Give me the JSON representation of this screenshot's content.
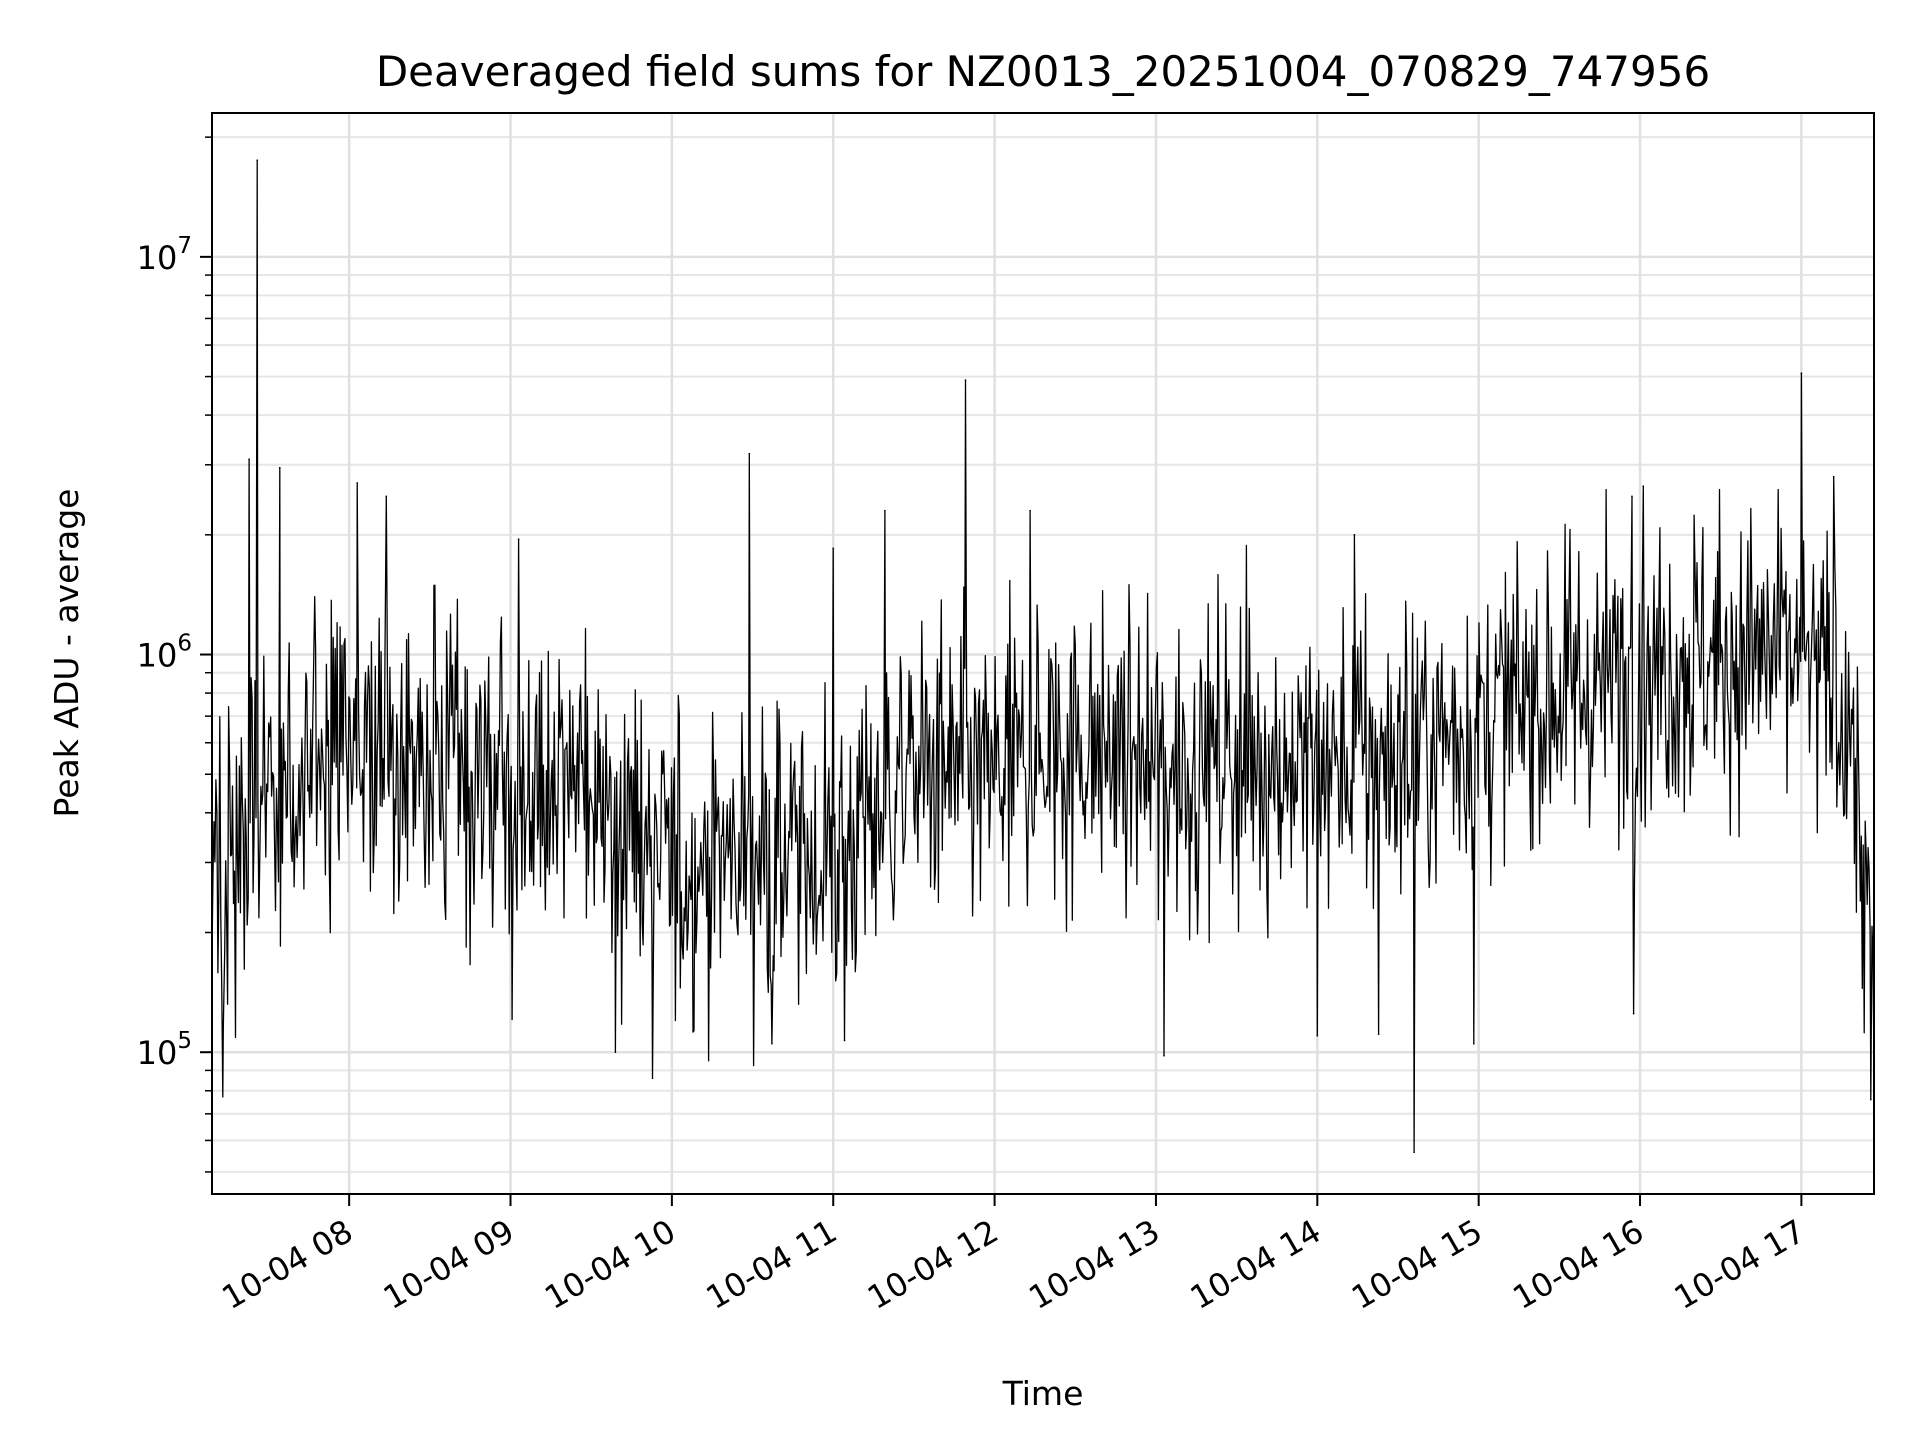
{
  "chart_data": {
    "type": "line",
    "title": "Deaveraged field sums for NZ0013_20251004_070829_747956",
    "xlabel": "Time",
    "ylabel": "Peak ADU - average",
    "yscale": "log",
    "ylim": [
      44000,
      23000000
    ],
    "xlim_hours": [
      7.15,
      17.45
    ],
    "grid": true,
    "line_color": "#000000",
    "x_ticks": [
      {
        "value": 8,
        "label": "10-04 08"
      },
      {
        "value": 9,
        "label": "10-04 09"
      },
      {
        "value": 10,
        "label": "10-04 10"
      },
      {
        "value": 11,
        "label": "10-04 11"
      },
      {
        "value": 12,
        "label": "10-04 12"
      },
      {
        "value": 13,
        "label": "10-04 13"
      },
      {
        "value": 14,
        "label": "10-04 14"
      },
      {
        "value": 15,
        "label": "10-04 15"
      },
      {
        "value": 16,
        "label": "10-04 16"
      },
      {
        "value": 17,
        "label": "10-04 17"
      }
    ],
    "y_ticks": [
      {
        "value": 100000,
        "base": "10",
        "exp": "5"
      },
      {
        "value": 1000000,
        "base": "10",
        "exp": "6"
      },
      {
        "value": 10000000,
        "base": "10",
        "exp": "7"
      }
    ],
    "series": [
      {
        "name": "Peak ADU - average",
        "approximate_trend": {
          "x": [
            7.15,
            7.5,
            8.0,
            8.5,
            9.0,
            9.5,
            10.0,
            10.5,
            11.0,
            11.5,
            12.0,
            12.5,
            13.0,
            13.5,
            14.0,
            14.5,
            15.0,
            15.5,
            16.0,
            16.5,
            17.0,
            17.3,
            17.45
          ],
          "y": [
            250000,
            420000,
            560000,
            520000,
            430000,
            480000,
            280000,
            330000,
            300000,
            520000,
            480000,
            600000,
            520000,
            560000,
            520000,
            560000,
            680000,
            800000,
            900000,
            1000000,
            980000,
            700000,
            130000
          ]
        },
        "spikes": [
          {
            "x": 7.38,
            "y": 3100000
          },
          {
            "x": 7.43,
            "y": 17500000
          },
          {
            "x": 7.57,
            "y": 2950000
          },
          {
            "x": 8.05,
            "y": 2700000
          },
          {
            "x": 8.23,
            "y": 2500000
          },
          {
            "x": 9.05,
            "y": 1950000
          },
          {
            "x": 10.48,
            "y": 3200000
          },
          {
            "x": 11.0,
            "y": 1850000
          },
          {
            "x": 11.32,
            "y": 2300000
          },
          {
            "x": 11.82,
            "y": 4900000
          },
          {
            "x": 12.22,
            "y": 2300000
          },
          {
            "x": 14.23,
            "y": 2000000
          },
          {
            "x": 15.95,
            "y": 2500000
          },
          {
            "x": 16.02,
            "y": 2650000
          },
          {
            "x": 17.0,
            "y": 5100000
          },
          {
            "x": 17.2,
            "y": 2800000
          }
        ],
        "dips": [
          {
            "x": 7.22,
            "y": 115000
          },
          {
            "x": 9.65,
            "y": 100000
          },
          {
            "x": 9.88,
            "y": 86000
          },
          {
            "x": 10.62,
            "y": 105000
          },
          {
            "x": 11.07,
            "y": 107000
          },
          {
            "x": 13.05,
            "y": 98000
          },
          {
            "x": 14.0,
            "y": 110000
          },
          {
            "x": 14.38,
            "y": 111000
          },
          {
            "x": 14.6,
            "y": 56000
          },
          {
            "x": 14.97,
            "y": 105000
          },
          {
            "x": 15.96,
            "y": 125000
          },
          {
            "x": 17.43,
            "y": 76000
          }
        ]
      }
    ]
  }
}
